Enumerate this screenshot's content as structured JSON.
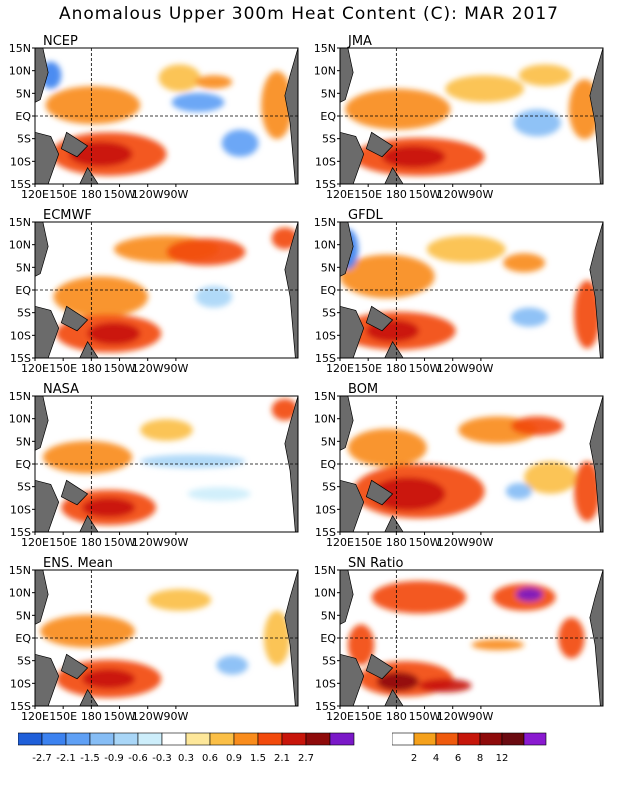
{
  "title": "Anomalous Upper 300m Heat Content (C): MAR 2017",
  "axes": {
    "lat_ticks": [
      "15N",
      "10N",
      "5N",
      "EQ",
      "5S",
      "10S",
      "15S"
    ],
    "lon_ticks": [
      "120E",
      "150E",
      "180",
      "150W",
      "120W",
      "90W"
    ]
  },
  "panels": [
    {
      "name": "NCEP"
    },
    {
      "name": "JMA"
    },
    {
      "name": "ECMWF"
    },
    {
      "name": "GFDL"
    },
    {
      "name": "NASA"
    },
    {
      "name": "BOM"
    },
    {
      "name": "ENS. Mean"
    },
    {
      "name": "SN Ratio"
    }
  ],
  "colorbar_anomaly": {
    "labels": [
      "-2.7",
      "-2.1",
      "-1.5",
      "-0.9",
      "-0.6",
      "-0.3",
      "0.3",
      "0.6",
      "0.9",
      "1.5",
      "2.1",
      "2.7"
    ],
    "colors": [
      "#1f5fd9",
      "#3c82f0",
      "#5fa0f5",
      "#86bdf5",
      "#a9d6f7",
      "#cdeefb",
      "#ffffff",
      "#fde79a",
      "#fbbf46",
      "#f98c1c",
      "#f24a0c",
      "#c8150a",
      "#8e0a0a",
      "#7a18c8"
    ]
  },
  "colorbar_snr": {
    "labels": [
      "2",
      "4",
      "6",
      "8",
      "12"
    ],
    "colors": [
      "#ffffff",
      "#f5a11c",
      "#ef5a0d",
      "#c6160a",
      "#8e0a0a",
      "#6a0a10",
      "#8a1ad0"
    ]
  },
  "colors": {
    "land": "#6b6b6b",
    "coast": "#000000"
  }
}
